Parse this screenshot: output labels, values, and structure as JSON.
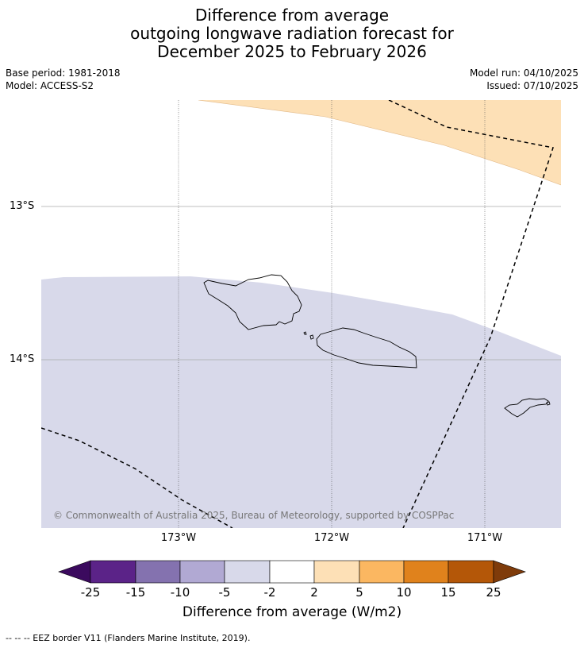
{
  "title": {
    "line1": "Difference from average",
    "line2": "outgoing longwave radiation forecast for",
    "line3": "December 2025 to February 2026"
  },
  "meta_left": {
    "base_period": "Base period: 1981-2018",
    "model": "Model: ACCESS-S2"
  },
  "meta_right": {
    "model_run": "Model run: 04/10/2025",
    "issued": "Issued: 07/10/2025"
  },
  "map": {
    "lat_labels": [
      "13°S",
      "14°S"
    ],
    "lon_labels": [
      "173°W",
      "172°W",
      "171°W"
    ],
    "regions": [
      {
        "name": "positive-anomaly-band",
        "category": "2 to 5",
        "color": "#fde0b6"
      },
      {
        "name": "negative-anomaly-band",
        "category": "-5 to -2",
        "color": "#d8d9ea"
      }
    ],
    "islands": [
      "Savai'i",
      "Upolu",
      "Tutuila"
    ],
    "copyright": "© Commonwealth of Australia 2025, Bureau of Meteorology, supported by COSPPac"
  },
  "colorbar": {
    "ticks": [
      "-25",
      "-15",
      "-10",
      "-5",
      "-2",
      "2",
      "5",
      "10",
      "15",
      "25"
    ],
    "colors": [
      "#5b2388",
      "#8472af",
      "#b1a9d3",
      "#d8d9ea",
      "#ffffff",
      "#fde0b6",
      "#fbb761",
      "#e0821c",
      "#b45708"
    ],
    "under_color": "#3b0a5e",
    "over_color": "#7f3b0a",
    "label": "Difference from average (W/m2)"
  },
  "legend": {
    "eez": "--  --  -- EEZ border V11 (Flanders Marine Institute, 2019)."
  }
}
